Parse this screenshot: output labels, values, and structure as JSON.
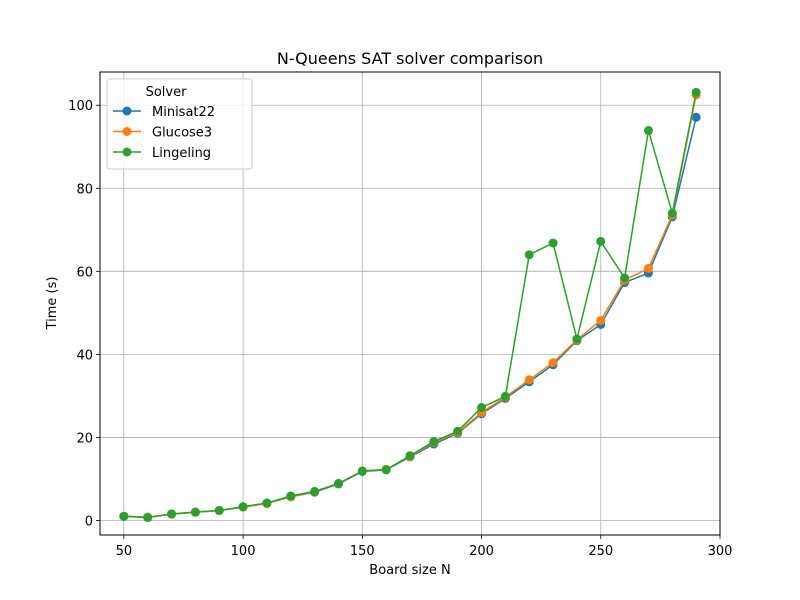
{
  "chart_data": {
    "type": "line",
    "title": "N-Queens SAT solver comparison",
    "xlabel": "Board size N",
    "ylabel": "Time (s)",
    "xlim": [
      40,
      300
    ],
    "ylim": [
      -3.5,
      108
    ],
    "xticks": [
      50,
      100,
      150,
      200,
      250,
      300
    ],
    "yticks": [
      0,
      20,
      40,
      60,
      80,
      100
    ],
    "grid": true,
    "legend": {
      "title": "Solver",
      "placement": "upper-left"
    },
    "x": [
      50,
      60,
      70,
      80,
      90,
      100,
      110,
      120,
      130,
      140,
      150,
      160,
      170,
      180,
      190,
      200,
      210,
      220,
      230,
      240,
      250,
      260,
      270,
      280,
      290
    ],
    "series": [
      {
        "name": "Minisat22",
        "color": "#1f77b4",
        "values": [
          1.0,
          0.8,
          1.5,
          2.0,
          2.4,
          3.3,
          4.1,
          5.7,
          6.8,
          8.8,
          11.8,
          12.2,
          15.3,
          18.4,
          21.0,
          25.7,
          29.4,
          33.4,
          37.5,
          43.3,
          47.2,
          57.3,
          59.6,
          73.1,
          97.1
        ]
      },
      {
        "name": "Glucose3",
        "color": "#ff7f0e",
        "values": [
          1.0,
          0.8,
          1.5,
          2.0,
          2.4,
          3.2,
          4.1,
          5.7,
          6.9,
          8.9,
          11.9,
          12.3,
          15.4,
          18.8,
          21.2,
          26.0,
          29.7,
          33.9,
          38.0,
          43.5,
          48.2,
          57.9,
          60.7,
          73.6,
          102.5
        ]
      },
      {
        "name": "Lingeling",
        "color": "#2ca02c",
        "values": [
          1.0,
          0.7,
          1.6,
          2.0,
          2.4,
          3.3,
          4.2,
          5.9,
          7.0,
          8.9,
          11.9,
          12.2,
          15.6,
          19.0,
          21.5,
          27.2,
          29.9,
          64.0,
          66.8,
          43.7,
          67.2,
          58.4,
          93.9,
          74.0,
          103.1
        ]
      }
    ]
  }
}
